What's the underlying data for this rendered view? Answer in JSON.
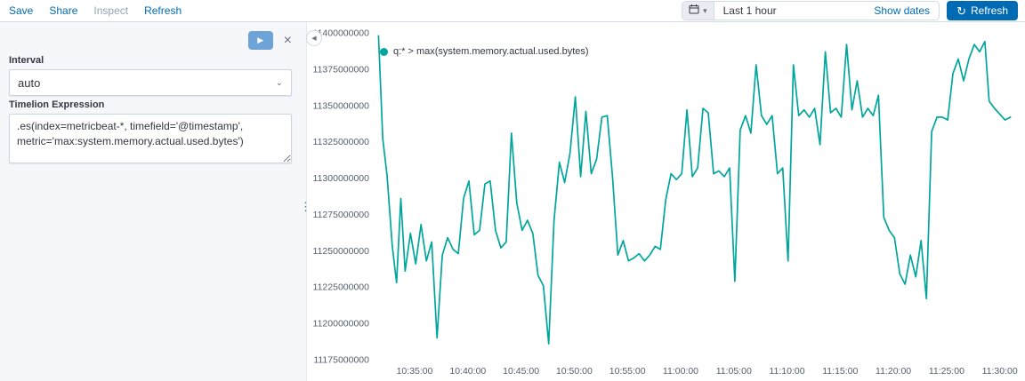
{
  "topbar": {
    "save": "Save",
    "share": "Share",
    "inspect": "Inspect",
    "refresh_link": "Refresh"
  },
  "timepicker": {
    "range": "Last 1 hour",
    "show_dates": "Show dates",
    "refresh_button": "Refresh",
    "calendar_icon": "calendar",
    "chevron_icon": "▾",
    "refresh_icon": "↻"
  },
  "editor_panel": {
    "play_icon": "▶",
    "close_icon": "×",
    "interval_label": "Interval",
    "interval_value": "auto",
    "select_chevron": "⌄",
    "expression_label": "Timelion Expression",
    "expression_value": ".es(index=metricbeat-*, timefield='@timestamp', metric='max:system.memory.actual.used.bytes')"
  },
  "panel_controls": {
    "collapse_icon": "◀",
    "resize_dots": "⋮"
  },
  "chart_data": {
    "type": "line",
    "title": "",
    "legend": "q:* > max(system.memory.actual.used.bytes)",
    "line_color": "#00a69b",
    "grid": false,
    "legend_position": "top-left",
    "ylabel": "",
    "xlabel": "",
    "ylim": [
      11175000000,
      11400000000
    ],
    "ytick_step": 25000000,
    "xlim": [
      31.4,
      91.2
    ],
    "x_unit": "minutes after 10:00:00",
    "y_unit_multiplier": 1000000,
    "xticks": [
      {
        "x": 35,
        "label": "10:35:00"
      },
      {
        "x": 40,
        "label": "10:40:00"
      },
      {
        "x": 45,
        "label": "10:45:00"
      },
      {
        "x": 50,
        "label": "10:50:00"
      },
      {
        "x": 55,
        "label": "10:55:00"
      },
      {
        "x": 60,
        "label": "11:00:00"
      },
      {
        "x": 65,
        "label": "11:05:00"
      },
      {
        "x": 70,
        "label": "11:10:00"
      },
      {
        "x": 75,
        "label": "11:15:00"
      },
      {
        "x": 80,
        "label": "11:20:00"
      },
      {
        "x": 85,
        "label": "11:25:00"
      },
      {
        "x": 90,
        "label": "11:30:00"
      }
    ],
    "points": [
      [
        31.6,
        11398
      ],
      [
        32.0,
        11327
      ],
      [
        32.4,
        11302
      ],
      [
        32.9,
        11253
      ],
      [
        33.3,
        11228
      ],
      [
        33.7,
        11286
      ],
      [
        34.1,
        11236
      ],
      [
        34.6,
        11262
      ],
      [
        35.1,
        11241
      ],
      [
        35.6,
        11268
      ],
      [
        36.1,
        11243
      ],
      [
        36.6,
        11256
      ],
      [
        37.1,
        11190
      ],
      [
        37.6,
        11247
      ],
      [
        38.1,
        11259
      ],
      [
        38.6,
        11251
      ],
      [
        39.1,
        11248
      ],
      [
        39.6,
        11286
      ],
      [
        40.1,
        11298
      ],
      [
        40.6,
        11261
      ],
      [
        41.1,
        11264
      ],
      [
        41.6,
        11296
      ],
      [
        42.1,
        11298
      ],
      [
        42.6,
        11264
      ],
      [
        43.1,
        11252
      ],
      [
        43.6,
        11256
      ],
      [
        44.1,
        11331
      ],
      [
        44.6,
        11283
      ],
      [
        45.1,
        11264
      ],
      [
        45.6,
        11271
      ],
      [
        46.1,
        11262
      ],
      [
        46.6,
        11233
      ],
      [
        47.1,
        11226
      ],
      [
        47.6,
        11186
      ],
      [
        48.1,
        11271
      ],
      [
        48.6,
        11311
      ],
      [
        49.1,
        11297
      ],
      [
        49.6,
        11317
      ],
      [
        50.1,
        11356
      ],
      [
        50.6,
        11301
      ],
      [
        51.1,
        11346
      ],
      [
        51.6,
        11303
      ],
      [
        52.1,
        11313
      ],
      [
        52.6,
        11342
      ],
      [
        53.1,
        11343
      ],
      [
        53.6,
        11301
      ],
      [
        54.1,
        11247
      ],
      [
        54.6,
        11257
      ],
      [
        55.1,
        11243
      ],
      [
        55.6,
        11245
      ],
      [
        56.1,
        11248
      ],
      [
        56.6,
        11243
      ],
      [
        57.1,
        11247
      ],
      [
        57.6,
        11253
      ],
      [
        58.1,
        11251
      ],
      [
        58.6,
        11285
      ],
      [
        59.1,
        11303
      ],
      [
        59.6,
        11299
      ],
      [
        60.1,
        11303
      ],
      [
        60.6,
        11347
      ],
      [
        61.1,
        11301
      ],
      [
        61.6,
        11307
      ],
      [
        62.1,
        11348
      ],
      [
        62.6,
        11345
      ],
      [
        63.1,
        11303
      ],
      [
        63.6,
        11305
      ],
      [
        64.1,
        11301
      ],
      [
        64.6,
        11307
      ],
      [
        65.1,
        11229
      ],
      [
        65.6,
        11333
      ],
      [
        66.1,
        11343
      ],
      [
        66.6,
        11331
      ],
      [
        67.1,
        11378
      ],
      [
        67.6,
        11343
      ],
      [
        68.1,
        11337
      ],
      [
        68.6,
        11343
      ],
      [
        69.1,
        11303
      ],
      [
        69.6,
        11307
      ],
      [
        70.1,
        11243
      ],
      [
        70.6,
        11378
      ],
      [
        71.1,
        11343
      ],
      [
        71.6,
        11347
      ],
      [
        72.1,
        11342
      ],
      [
        72.6,
        11348
      ],
      [
        73.1,
        11323
      ],
      [
        73.6,
        11387
      ],
      [
        74.1,
        11345
      ],
      [
        74.6,
        11348
      ],
      [
        75.1,
        11342
      ],
      [
        75.6,
        11392
      ],
      [
        76.1,
        11347
      ],
      [
        76.6,
        11367
      ],
      [
        77.1,
        11342
      ],
      [
        77.6,
        11348
      ],
      [
        78.1,
        11343
      ],
      [
        78.6,
        11357
      ],
      [
        79.1,
        11273
      ],
      [
        79.6,
        11264
      ],
      [
        80.1,
        11259
      ],
      [
        80.6,
        11234
      ],
      [
        81.1,
        11227
      ],
      [
        81.6,
        11247
      ],
      [
        82.1,
        11232
      ],
      [
        82.6,
        11257
      ],
      [
        83.1,
        11217
      ],
      [
        83.6,
        11332
      ],
      [
        84.1,
        11342
      ],
      [
        84.6,
        11342
      ],
      [
        85.1,
        11340
      ],
      [
        85.6,
        11372
      ],
      [
        86.1,
        11382
      ],
      [
        86.6,
        11367
      ],
      [
        87.1,
        11382
      ],
      [
        87.6,
        11392
      ],
      [
        88.1,
        11387
      ],
      [
        88.6,
        11394
      ],
      [
        89.0,
        11353
      ],
      [
        89.5,
        11348
      ],
      [
        90.0,
        11344
      ],
      [
        90.5,
        11340
      ],
      [
        91.0,
        11342
      ]
    ]
  }
}
